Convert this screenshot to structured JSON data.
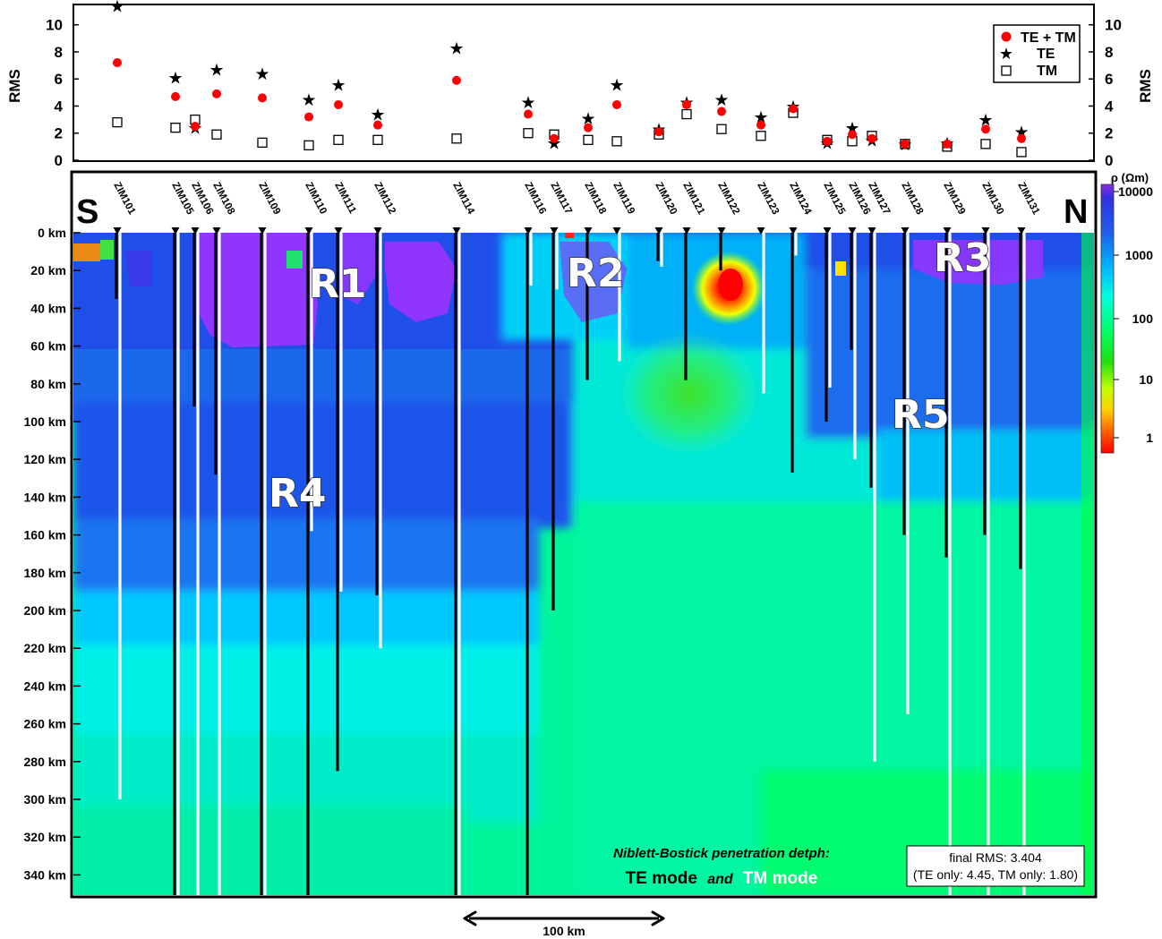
{
  "chart_data": [
    {
      "type": "scatter",
      "ylabel_left": "RMS",
      "ylabel_right": "RMS",
      "ylim": [
        0,
        11.5
      ],
      "yticks": [
        0,
        2,
        4,
        6,
        8,
        10
      ],
      "legend": {
        "placement": "top-right"
      },
      "stations": [
        "ZIM101",
        "ZIM105",
        "ZIM106",
        "ZIM108",
        "ZIM109",
        "ZIM110",
        "ZIM111",
        "ZIM112",
        "ZIM114",
        "ZIM116",
        "ZIM117",
        "ZIM118",
        "ZIM119",
        "ZIM120",
        "ZIM121",
        "ZIM122",
        "ZIM123",
        "ZIM124",
        "ZIM125",
        "ZIM126",
        "ZIM127",
        "ZIM128",
        "ZIM129",
        "ZIM130",
        "ZIM131"
      ],
      "series": [
        {
          "name": "TE + TM",
          "marker": "circle",
          "color": "#ff0000",
          "values": [
            7.2,
            4.7,
            2.5,
            4.9,
            4.6,
            3.2,
            4.1,
            2.6,
            5.9,
            3.4,
            1.6,
            2.4,
            4.1,
            2.1,
            4.1,
            3.6,
            2.6,
            3.8,
            1.4,
            1.9,
            1.6,
            1.2,
            1.2,
            2.3,
            1.6
          ]
        },
        {
          "name": "TE",
          "marker": "star",
          "color": "#000000",
          "values": [
            11.4,
            6.1,
            2.4,
            6.7,
            6.4,
            4.5,
            5.6,
            3.4,
            8.3,
            4.3,
            1.3,
            3.1,
            5.6,
            2.3,
            4.3,
            4.5,
            3.2,
            4.0,
            1.3,
            2.4,
            1.5,
            1.2,
            1.3,
            3.0,
            2.1
          ]
        },
        {
          "name": "TM",
          "marker": "square",
          "color": "#000000",
          "values": [
            2.8,
            2.4,
            3.0,
            1.9,
            1.3,
            1.1,
            1.5,
            1.5,
            1.6,
            2.0,
            1.9,
            1.5,
            1.4,
            1.9,
            3.4,
            2.3,
            1.8,
            3.5,
            1.5,
            1.4,
            1.8,
            1.2,
            1.0,
            1.2,
            0.6
          ]
        }
      ]
    },
    {
      "type": "heatmap",
      "orientation_left": "S",
      "orientation_right": "N",
      "ylabel": "km",
      "depth_ticks": [
        "0 km",
        "20 km",
        "40 km",
        "60 km",
        "80 km",
        "100 km",
        "120 km",
        "140 km",
        "160 km",
        "180 km",
        "200 km",
        "220 km",
        "240 km",
        "260 km",
        "280 km",
        "300 km",
        "320 km",
        "340 km"
      ],
      "colorbar_title": "ρ (Ωm)",
      "colorbar_ticks": [
        "10000",
        "1000",
        "100",
        "10",
        "1"
      ],
      "colorscale": "log resistivity: red (1) - yellow (10) - green (100) - cyan (1000) - blue - purple (10000)",
      "features": [
        {
          "label": "R1",
          "description": "resistive (purple)"
        },
        {
          "label": "R2",
          "description": "resistive (purple)"
        },
        {
          "label": "R3",
          "description": "resistive (purple)"
        },
        {
          "label": "R4",
          "description": "resistive (blue)"
        },
        {
          "label": "R5",
          "description": "resistive (blue)"
        }
      ],
      "penetration_depth_km": {
        "TE": [
          35,
          null,
          92,
          128,
          null,
          null,
          285,
          192,
          null,
          null,
          200,
          78,
          null,
          15,
          78,
          20,
          null,
          127,
          100,
          62,
          135,
          160,
          172,
          160,
          178
        ],
        "TM": [
          300,
          null,
          null,
          null,
          null,
          158,
          190,
          220,
          null,
          28,
          30,
          null,
          68,
          18,
          null,
          null,
          85,
          12,
          82,
          120,
          280,
          255,
          null,
          null,
          null
        ],
        "full_depth_TE": [
          false,
          true,
          false,
          false,
          true,
          true,
          false,
          false,
          true,
          true,
          false,
          false,
          false,
          false,
          false,
          false,
          false,
          false,
          false,
          false,
          false,
          false,
          false,
          false,
          false
        ],
        "full_depth_TM": [
          false,
          true,
          true,
          true,
          true,
          false,
          false,
          false,
          true,
          false,
          false,
          false,
          false,
          false,
          false,
          false,
          false,
          false,
          false,
          false,
          false,
          false,
          true,
          true,
          true
        ]
      },
      "annotation_title": "Niblett-Bostick penetration detph:",
      "annotation_te": "TE mode",
      "annotation_and": "and",
      "annotation_tm": "TM mode",
      "final_rms": "final RMS: 3.404",
      "rms_detail": "(TE only: 4.45, TM only: 1.80)",
      "scale_bar": "100 km"
    }
  ],
  "colors": {
    "te_tm": "#ff0000",
    "purple": "#9933ff",
    "blue": "#1f4fe8",
    "cyan": "#00ffff",
    "green": "#00ff66"
  }
}
